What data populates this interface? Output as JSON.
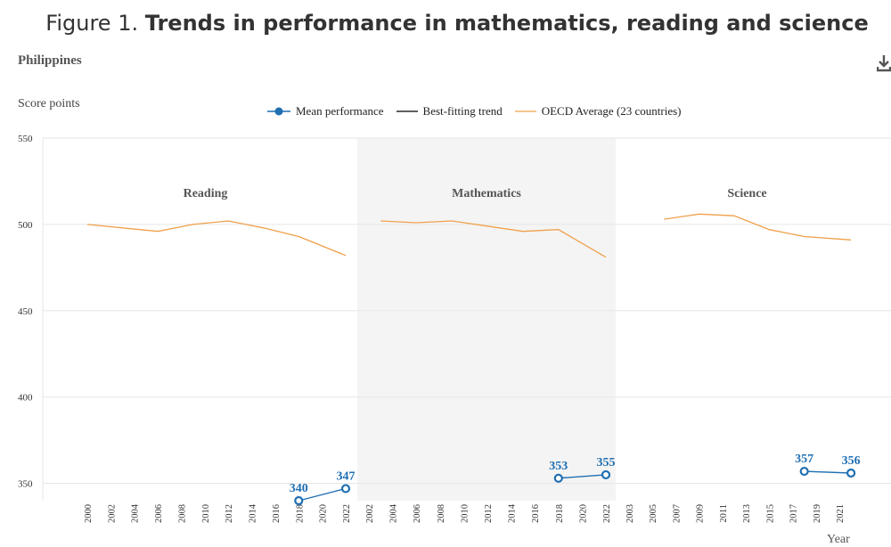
{
  "header": {
    "title_prefix": "Figure 1.",
    "title_main": "Trends in performance in mathematics, reading and science",
    "country": "Philippines",
    "download_icon": "download-icon"
  },
  "legend": {
    "mean": "Mean performance",
    "trend": "Best-fitting trend",
    "oecd": "OECD Average (23 countries)"
  },
  "colors": {
    "mean": "#1f6fb2",
    "oecd": "#f0a04b",
    "trend": "#000000",
    "shade": "#f4f4f4",
    "grid": "#e6e6e6"
  },
  "chart_data": {
    "type": "line",
    "ylabel": "Score points",
    "xlabel": "Year",
    "ylim": [
      340,
      550
    ],
    "yticks": [
      350,
      400,
      450,
      500,
      550
    ],
    "grid": true,
    "legend_position": "top",
    "panels": [
      {
        "name": "Reading",
        "shaded": false,
        "x_ticks": [
          "2000",
          "2002",
          "2004",
          "2006",
          "2008",
          "2010",
          "2012",
          "2014",
          "2016",
          "2018",
          "2020",
          "2022"
        ],
        "series": [
          {
            "name": "OECD Average (23 countries)",
            "x": [
              2000,
              2003,
              2006,
              2009,
              2012,
              2015,
              2018,
              2022
            ],
            "y": [
              500,
              498,
              496,
              500,
              502,
              498,
              493,
              482
            ]
          },
          {
            "name": "Mean performance",
            "x": [
              2018,
              2022
            ],
            "y": [
              340,
              347
            ],
            "labels": [
              "340",
              "347"
            ]
          }
        ]
      },
      {
        "name": "Mathematics",
        "shaded": true,
        "x_ticks": [
          "2002",
          "2004",
          "2006",
          "2008",
          "2010",
          "2012",
          "2014",
          "2016",
          "2018",
          "2020",
          "2022"
        ],
        "series": [
          {
            "name": "OECD Average (23 countries)",
            "x": [
              2003,
              2006,
              2009,
              2012,
              2015,
              2018,
              2022
            ],
            "y": [
              502,
              501,
              502,
              499,
              496,
              497,
              481
            ]
          },
          {
            "name": "Mean performance",
            "x": [
              2018,
              2022
            ],
            "y": [
              353,
              355
            ],
            "labels": [
              "353",
              "355"
            ]
          }
        ]
      },
      {
        "name": "Science",
        "shaded": false,
        "x_ticks": [
          "2003",
          "2005",
          "2007",
          "2009",
          "2011",
          "2013",
          "2015",
          "2017",
          "2019",
          "2021"
        ],
        "series": [
          {
            "name": "OECD Average (23 countries)",
            "x": [
              2006,
              2009,
              2012,
              2015,
              2018,
              2022
            ],
            "y": [
              503,
              506,
              505,
              497,
              493,
              491
            ]
          },
          {
            "name": "Mean performance",
            "x": [
              2018,
              2022
            ],
            "y": [
              357,
              356
            ],
            "labels": [
              "357",
              "356"
            ]
          }
        ]
      }
    ]
  }
}
